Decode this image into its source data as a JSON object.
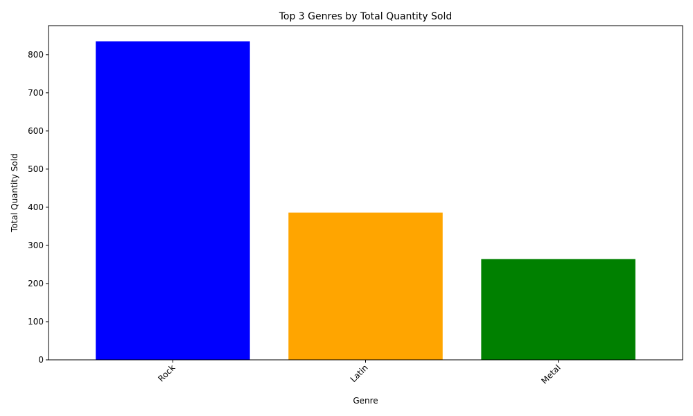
{
  "chart_data": {
    "type": "bar",
    "title": "Top 3 Genres by Total Quantity Sold",
    "xlabel": "Genre",
    "ylabel": "Total Quantity Sold",
    "categories": [
      "Rock",
      "Latin",
      "Metal"
    ],
    "values": [
      835,
      386,
      264
    ],
    "colors": [
      "#0000ff",
      "#ffa500",
      "#008000"
    ],
    "ylim": [
      0,
      876
    ],
    "yticks": [
      0,
      100,
      200,
      300,
      400,
      500,
      600,
      700,
      800
    ],
    "xtick_rotation": "45 degrees",
    "grid": false,
    "legend": "none"
  }
}
